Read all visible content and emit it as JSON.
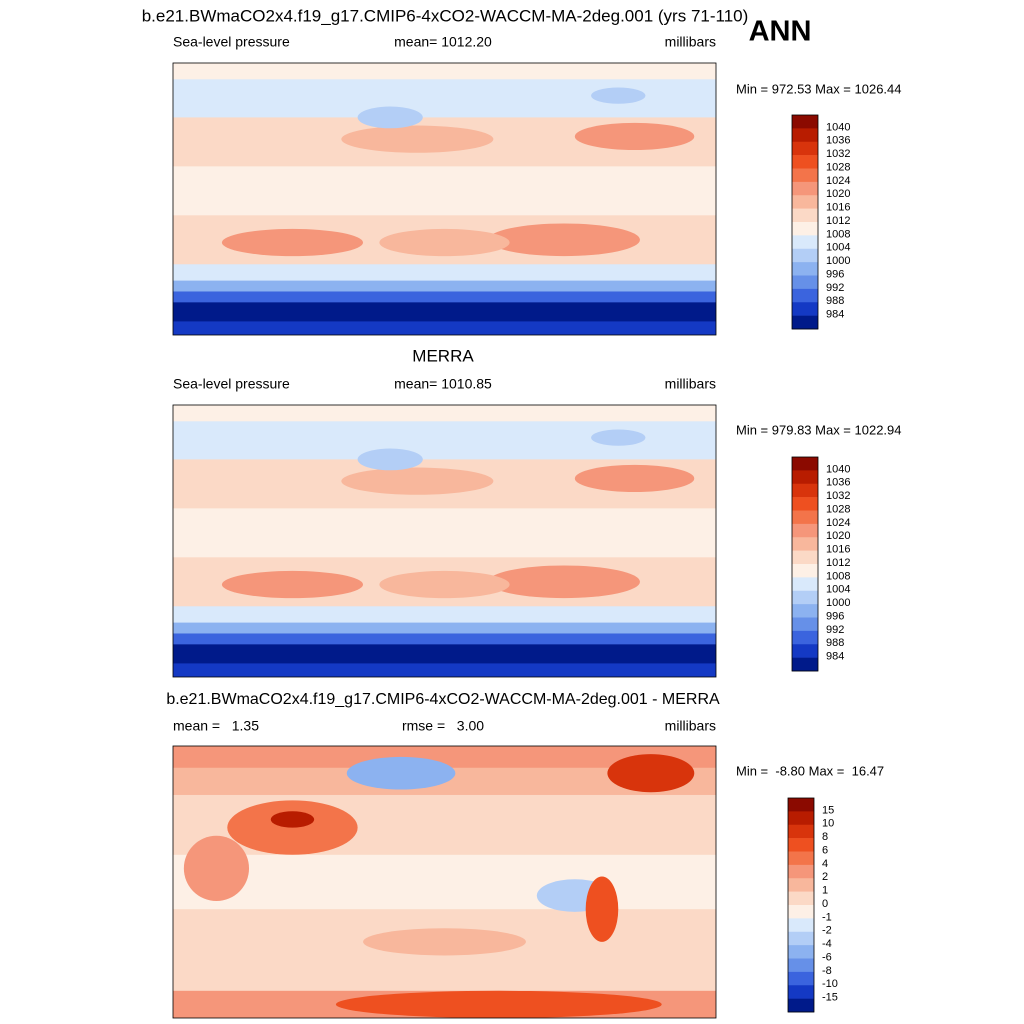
{
  "header": {
    "title": "b.e21.BWmaCO2x4.f19_g17.CMIP6-4xCO2-WACCM-MA-2deg.001 (yrs 71-110)",
    "season": "ANN"
  },
  "panels": [
    {
      "left": "Sea-level pressure",
      "center": "mean= 1012.20",
      "right": "millibars",
      "range": "Min = 972.53 Max = 1026.44",
      "colorbar": {
        "labels": [
          1040,
          1036,
          1032,
          1028,
          1024,
          1020,
          1016,
          1012,
          1008,
          1004,
          1000,
          996,
          992,
          988,
          984
        ],
        "colors": [
          "#8b0a00",
          "#b81c00",
          "#d8340c",
          "#ee5020",
          "#f3744a",
          "#f5967a",
          "#f8b79c",
          "#fbd9c6",
          "#fdf0e6",
          "#d9e9fb",
          "#b3cef6",
          "#8cb2f0",
          "#6690e8",
          "#3b64de",
          "#1439c4",
          "#001a8a"
        ]
      }
    },
    {
      "title": "MERRA",
      "left": "Sea-level pressure",
      "center": "mean= 1010.85",
      "right": "millibars",
      "range": "Min = 979.83 Max = 1022.94",
      "colorbar": {
        "labels": [
          1040,
          1036,
          1032,
          1028,
          1024,
          1020,
          1016,
          1012,
          1008,
          1004,
          1000,
          996,
          992,
          988,
          984
        ],
        "colors": [
          "#8b0a00",
          "#b81c00",
          "#d8340c",
          "#ee5020",
          "#f3744a",
          "#f5967a",
          "#f8b79c",
          "#fbd9c6",
          "#fdf0e6",
          "#d9e9fb",
          "#b3cef6",
          "#8cb2f0",
          "#6690e8",
          "#3b64de",
          "#1439c4",
          "#001a8a"
        ]
      }
    },
    {
      "title": "b.e21.BWmaCO2x4.f19_g17.CMIP6-4xCO2-WACCM-MA-2deg.001 - MERRA",
      "left": "mean =   1.35",
      "center": "rmse =   3.00",
      "right": "millibars",
      "range": "Min =  -8.80 Max =  16.47",
      "colorbar": {
        "labels": [
          15,
          10,
          8,
          6,
          4,
          2,
          1,
          0,
          -1,
          -2,
          -4,
          -6,
          -8,
          -10,
          -15
        ],
        "colors": [
          "#8b0a00",
          "#b81c00",
          "#d8340c",
          "#ee5020",
          "#f3744a",
          "#f5967a",
          "#f8b79c",
          "#fbd9c6",
          "#fdf0e6",
          "#d9e9fb",
          "#b3cef6",
          "#8cb2f0",
          "#6690e8",
          "#3b64de",
          "#1439c4",
          "#001a8a"
        ]
      }
    }
  ]
}
